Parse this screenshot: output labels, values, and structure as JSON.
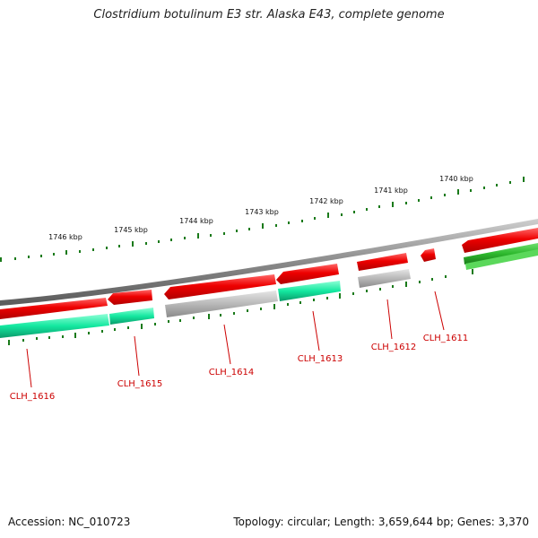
{
  "title": "Clostridium botulinum E3 str. Alaska E43, complete genome",
  "footer": {
    "accession": "Accession: NC_010723",
    "summary": "Topology: circular; Length: 3,659,644 bp; Genes: 3,370"
  },
  "ticks": [
    "1740 kbp",
    "1741 kbp",
    "1742 kbp",
    "1743 kbp",
    "1744 kbp",
    "1745 kbp",
    "1746 kbp"
  ],
  "genes": [
    "CLH_1611",
    "CLH_1612",
    "CLH_1613",
    "CLH_1614",
    "CLH_1615",
    "CLH_1616"
  ],
  "colors": {
    "backbone": "#888888",
    "cds_red": "#e30000",
    "cds_teal": "#14e8a0",
    "cds_gray": "#b4b4b4",
    "cds_green": "#2db82d",
    "tick": "#1a7a1a",
    "label": "#cc0000"
  }
}
